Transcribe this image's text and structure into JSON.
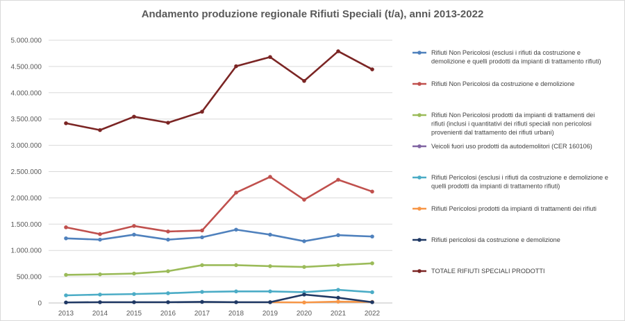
{
  "chart_data": {
    "type": "line",
    "title": "Andamento produzione regionale Rifiuti Speciali (t/a), anni 2013-2022",
    "xlabel": "",
    "ylabel": "",
    "categories": [
      "2013",
      "2014",
      "2015",
      "2016",
      "2017",
      "2018",
      "2019",
      "2020",
      "2021",
      "2022"
    ],
    "ylim": [
      0,
      5000000
    ],
    "y_ticks": [
      0,
      500000,
      1000000,
      1500000,
      2000000,
      2500000,
      3000000,
      3500000,
      4000000,
      4500000,
      5000000
    ],
    "y_tick_labels": [
      "0",
      "500.000",
      "1.000.000",
      "1.500.000",
      "2.000.000",
      "2.500.000",
      "3.000.000",
      "3.500.000",
      "4.000.000",
      "4.500.000",
      "5.000.000"
    ],
    "grid": true,
    "legend_position": "right",
    "series": [
      {
        "name": "Rifiuti Non Pericolosi (esclusi i rifiuti da costruzione e demolizione e quelli prodotti da impianti di trattamento rifiuti)",
        "legend_lines": [
          "Rifiuti Non Pericolosi (esclusi i rifiuti da costruzione e",
          "demolizione e quelli prodotti da impianti di trattamento rifiuti)"
        ],
        "color": "#4f81bd",
        "values": [
          1230000,
          1205000,
          1300000,
          1205000,
          1250000,
          1395000,
          1300000,
          1175000,
          1290000,
          1265000
        ]
      },
      {
        "name": "Rifiuti Non Pericolosi da costruzione e demolizione",
        "legend_lines": [
          "Rifiuti Non Pericolosi da costruzione e demolizione"
        ],
        "color": "#c0504d",
        "values": [
          1440000,
          1310000,
          1465000,
          1360000,
          1380000,
          2100000,
          2400000,
          1965000,
          2345000,
          2120000
        ]
      },
      {
        "name": "Rifiuti Non Pericolosi prodotti da impianti di trattamenti dei rifiuti (inclusi i quantitativi dei rifiuti speciali non pericolosi provenienti dal trattamento dei rifiuti urbani)",
        "legend_lines": [
          "Rifiuti Non Pericolosi prodotti da impianti di trattamenti dei",
          "rifiuti (inclusi i quantitativi dei rifiuti speciali non pericolosi",
          "provenienti dal trattamento dei rifiuti urbani)"
        ],
        "color": "#9bbb59",
        "values": [
          535000,
          545000,
          560000,
          605000,
          720000,
          720000,
          700000,
          685000,
          720000,
          755000
        ]
      },
      {
        "name": "Veicoli fuori uso prodotti da autodemolitori (CER 160106)",
        "legend_lines": [
          "Veicoli fuori uso prodotti da autodemolitori (CER 160106)"
        ],
        "color": "#8064a2",
        "values": [
          null,
          null,
          null,
          null,
          null,
          null,
          null,
          null,
          null,
          null
        ]
      },
      {
        "name": "Rifiuti Pericolosi (esclusi i rifiuti da costruzione e demolizione e quelli prodotti da impianti di trattamento rifiuti)",
        "legend_lines": [
          "Rifiuti Pericolosi (esclusi i rifiuti da costruzione e demolizione e",
          "quelli prodotti da impianti di trattamento rifiuti)"
        ],
        "color": "#4bacc6",
        "values": [
          145000,
          160000,
          170000,
          185000,
          210000,
          220000,
          220000,
          205000,
          250000,
          205000
        ]
      },
      {
        "name": "Rifiuti Pericolosi prodotti da impianti di trattamenti dei rifiuti",
        "legend_lines": [
          "Rifiuti Pericolosi prodotti da impianti di trattamenti dei rifiuti"
        ],
        "color": "#f79646",
        "values": [
          null,
          null,
          null,
          null,
          null,
          null,
          15000,
          10000,
          25000,
          20000
        ]
      },
      {
        "name": "Rifiuti pericolosi da costruzione e demolizione",
        "legend_lines": [
          "Rifiuti pericolosi da costruzione e demolizione"
        ],
        "color": "#1f3864",
        "values": [
          10000,
          15000,
          15000,
          15000,
          20000,
          15000,
          15000,
          160000,
          100000,
          15000
        ]
      },
      {
        "name": "TOTALE RIFIUTI SPECIALI PRODOTTI",
        "legend_lines": [
          "TOTALE RIFIUTI SPECIALI PRODOTTI"
        ],
        "color": "#7b2524",
        "values": [
          3420000,
          3290000,
          3545000,
          3430000,
          3640000,
          4505000,
          4680000,
          4225000,
          4790000,
          4445000
        ]
      }
    ]
  }
}
